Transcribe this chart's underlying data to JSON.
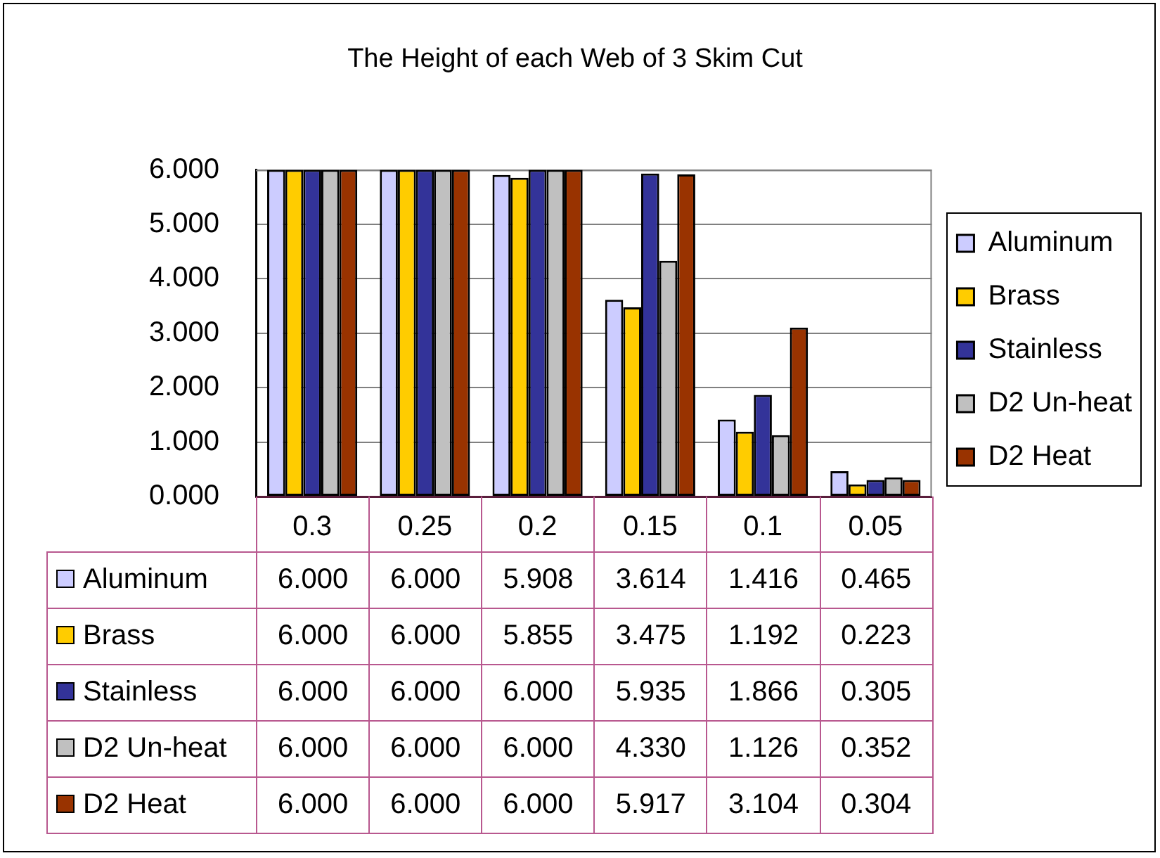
{
  "chart_data": {
    "type": "bar",
    "title": "The Height of each Web of 3 Skim Cut",
    "categories": [
      "0.3",
      "0.25",
      "0.2",
      "0.15",
      "0.1",
      "0.05"
    ],
    "series": [
      {
        "name": "Aluminum",
        "color": "#ccccff",
        "values": [
          6,
          6,
          5.908,
          3.614,
          1.416,
          0.465
        ],
        "value_labels": [
          "6.000",
          "6.000",
          "5.908",
          "3.614",
          "1.416",
          "0.465"
        ]
      },
      {
        "name": "Brass",
        "color": "#ffcc00",
        "values": [
          6,
          6,
          5.855,
          3.475,
          1.192,
          0.223
        ],
        "value_labels": [
          "6.000",
          "6.000",
          "5.855",
          "3.475",
          "1.192",
          "0.223"
        ]
      },
      {
        "name": "Stainless",
        "color": "#333399",
        "values": [
          6,
          6,
          6,
          5.935,
          1.866,
          0.305
        ],
        "value_labels": [
          "6.000",
          "6.000",
          "6.000",
          "5.935",
          "1.866",
          "0.305"
        ]
      },
      {
        "name": "D2 Un-heat",
        "color": "#c0c0c0",
        "values": [
          6,
          6,
          6,
          4.33,
          1.126,
          0.352
        ],
        "value_labels": [
          "6.000",
          "6.000",
          "6.000",
          "4.330",
          "1.126",
          "0.352"
        ]
      },
      {
        "name": "D2 Heat",
        "color": "#993300",
        "values": [
          6,
          6,
          6,
          5.917,
          3.104,
          0.304
        ],
        "value_labels": [
          "6.000",
          "6.000",
          "6.000",
          "5.917",
          "3.104",
          "0.304"
        ]
      }
    ],
    "ylim": [
      0,
      6
    ],
    "yticks": [
      {
        "value": 0,
        "label": "0.000"
      },
      {
        "value": 1,
        "label": "1.000"
      },
      {
        "value": 2,
        "label": "2.000"
      },
      {
        "value": 3,
        "label": "3.000"
      },
      {
        "value": 4,
        "label": "4.000"
      },
      {
        "value": 5,
        "label": "5.000"
      },
      {
        "value": 6,
        "label": "6.000"
      }
    ],
    "grid": "y",
    "legend": "right"
  }
}
